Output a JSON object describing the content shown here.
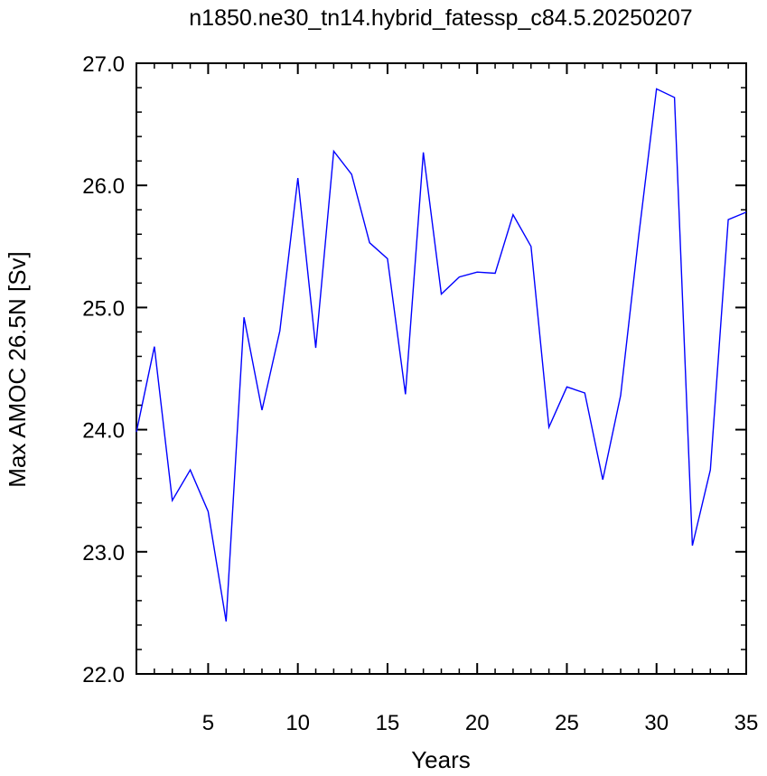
{
  "chart_data": {
    "type": "line",
    "title": "n1850.ne30_tn14.hybrid_fatessp_c84.5.20250207",
    "xlabel": "Years",
    "ylabel": "Max AMOC 26.5N [Sv]",
    "xlim": [
      1,
      35
    ],
    "ylim": [
      22.0,
      27.0
    ],
    "x_ticks": [
      5,
      10,
      15,
      20,
      25,
      30,
      35
    ],
    "x_tick_labels": [
      "5",
      "10",
      "15",
      "20",
      "25",
      "30",
      "35"
    ],
    "y_ticks": [
      22.0,
      23.0,
      24.0,
      25.0,
      26.0,
      27.0
    ],
    "y_tick_labels": [
      "22.0",
      "23.0",
      "24.0",
      "25.0",
      "26.0",
      "27.0"
    ],
    "x_minor_step": 1,
    "y_minor_step": 0.2,
    "grid": false,
    "line_color": "#0000ff",
    "x": [
      1,
      2,
      3,
      4,
      5,
      6,
      7,
      8,
      9,
      10,
      11,
      12,
      13,
      14,
      15,
      16,
      17,
      18,
      19,
      20,
      21,
      22,
      23,
      24,
      25,
      26,
      27,
      28,
      29,
      30,
      31,
      32,
      33,
      34,
      35
    ],
    "values": [
      23.98,
      24.68,
      23.42,
      23.67,
      23.33,
      22.43,
      24.92,
      24.16,
      24.81,
      26.06,
      24.67,
      26.28,
      26.09,
      25.53,
      25.4,
      24.29,
      26.27,
      25.11,
      25.25,
      25.29,
      25.28,
      25.76,
      25.5,
      24.02,
      24.35,
      24.3,
      23.59,
      24.28,
      25.58,
      26.79,
      26.72,
      23.05,
      23.67,
      25.72,
      25.78
    ]
  }
}
